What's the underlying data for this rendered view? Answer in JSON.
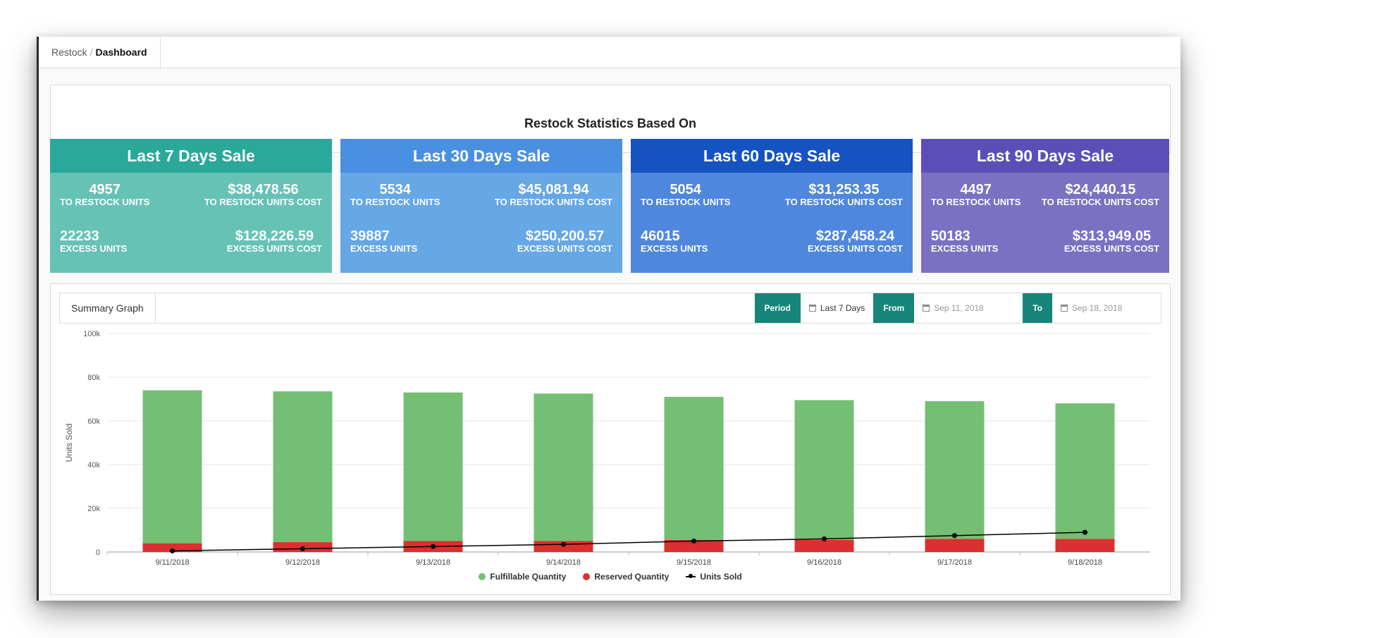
{
  "breadcrumb": {
    "parent": "Restock",
    "separator": "/",
    "current": "Dashboard"
  },
  "stats": {
    "title": "Restock Statistics Based On",
    "cards": [
      {
        "title": "Last 7 Days Sale",
        "restock_units": "4957",
        "restock_units_label": "TO RESTOCK UNITS",
        "restock_cost": "$38,478.56",
        "restock_cost_label": "TO RESTOCK UNITS COST",
        "excess_units": "22233",
        "excess_units_label": "EXCESS UNITS",
        "excess_cost": "$128,226.59",
        "excess_cost_label": "EXCESS UNITS COST"
      },
      {
        "title": "Last 30 Days Sale",
        "restock_units": "5534",
        "restock_units_label": "TO RESTOCK UNITS",
        "restock_cost": "$45,081.94",
        "restock_cost_label": "TO RESTOCK UNITS COST",
        "excess_units": "39887",
        "excess_units_label": "EXCESS UNITS",
        "excess_cost": "$250,200.57",
        "excess_cost_label": "EXCESS UNITS COST"
      },
      {
        "title": "Last 60 Days Sale",
        "restock_units": "5054",
        "restock_units_label": "TO RESTOCK UNITS",
        "restock_cost": "$31,253.35",
        "restock_cost_label": "TO RESTOCK UNITS COST",
        "excess_units": "46015",
        "excess_units_label": "EXCESS UNITS",
        "excess_cost": "$287,458.24",
        "excess_cost_label": "EXCESS UNITS COST"
      },
      {
        "title": "Last 90 Days Sale",
        "restock_units": "4497",
        "restock_units_label": "TO RESTOCK UNITS",
        "restock_cost": "$24,440.15",
        "restock_cost_label": "TO RESTOCK UNITS COST",
        "excess_units": "50183",
        "excess_units_label": "EXCESS UNITS",
        "excess_cost": "$313,949.05",
        "excess_cost_label": "EXCESS UNITS COST"
      }
    ]
  },
  "graph": {
    "label": "Summary Graph",
    "period_button": "Period",
    "period_value": "Last 7 Days",
    "from_button": "From",
    "from_value": "Sep 11, 2018",
    "to_button": "To",
    "to_value": "Sep 18, 2018",
    "icons": {
      "calendar": "calendar-icon"
    }
  },
  "chart_data": {
    "type": "bar",
    "stacked": true,
    "ylabel": "Units Sold",
    "ylim": [
      0,
      100000
    ],
    "yticks": [
      0,
      20000,
      40000,
      60000,
      80000,
      100000
    ],
    "ytick_labels": [
      "0",
      "20k",
      "40k",
      "60k",
      "80k",
      "100k"
    ],
    "categories": [
      "9/11/2018",
      "9/12/2018",
      "9/13/2018",
      "9/14/2018",
      "9/15/2018",
      "9/16/2018",
      "9/17/2018",
      "9/18/2018"
    ],
    "series": [
      {
        "name": "Fulfillable Quantity",
        "color": "#74bf73",
        "values": [
          70000,
          69000,
          68000,
          67500,
          65500,
          64000,
          63000,
          62000
        ]
      },
      {
        "name": "Reserved Quantity",
        "color": "#dc2f2f",
        "values": [
          4000,
          4500,
          5000,
          5000,
          5500,
          5500,
          6000,
          6000
        ]
      },
      {
        "name": "Units Sold",
        "type": "line",
        "color": "#000000",
        "values": [
          500,
          1500,
          2500,
          3500,
          5000,
          6000,
          7500,
          9000
        ]
      }
    ],
    "grid": true,
    "legend": "bottom"
  }
}
